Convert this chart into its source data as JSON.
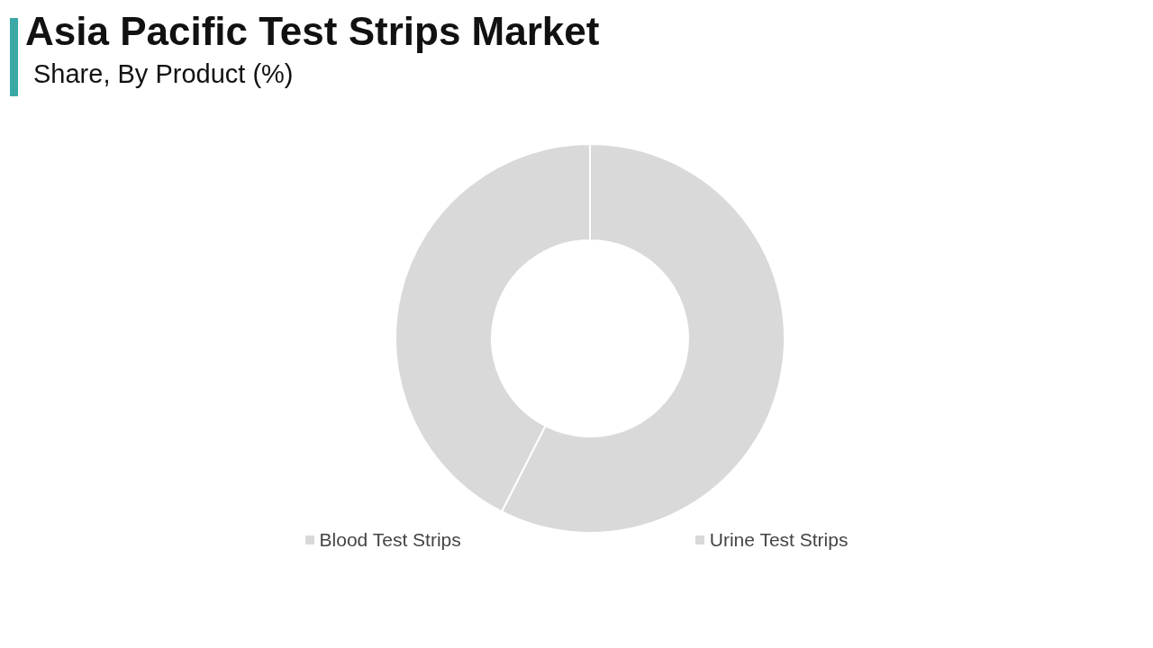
{
  "chart_data": {
    "type": "donut",
    "title": "Asia Pacific Test Strips Market",
    "subtitle": "Share, By Product (%)",
    "categories": [
      "Blood Test Strips",
      "Urine Test Strips"
    ],
    "values": [
      57.5,
      42.5
    ],
    "colors": [
      "#d9d9d9",
      "#d9d9d9"
    ],
    "legend": "bottom"
  }
}
